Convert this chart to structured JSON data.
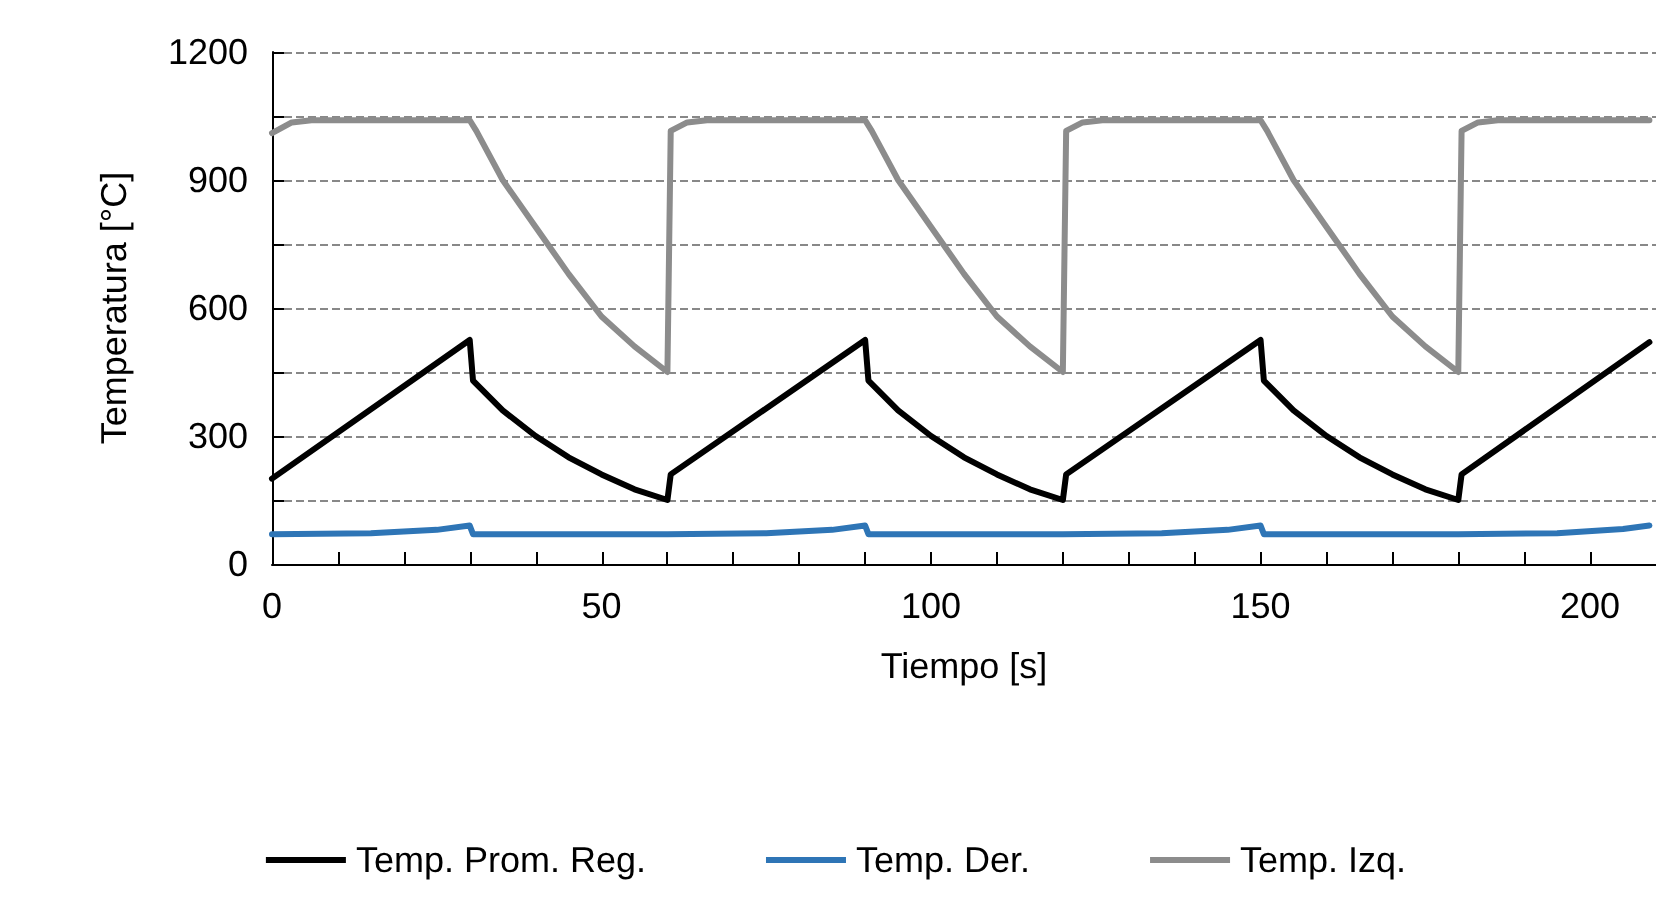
{
  "chart_data": {
    "type": "line",
    "xlabel": "Tiempo [s]",
    "ylabel": "Temperatura [°C]",
    "xlim": [
      0,
      210
    ],
    "ylim": [
      0,
      1200
    ],
    "xticks": [
      0,
      {
        "value": 10,
        "label": null
      },
      {
        "value": 20,
        "label": null
      },
      {
        "value": 30,
        "label": null
      },
      {
        "value": 40,
        "label": null
      },
      50,
      {
        "value": 60,
        "label": null
      },
      {
        "value": 70,
        "label": null
      },
      {
        "value": 80,
        "label": null
      },
      {
        "value": 90,
        "label": null
      },
      100,
      {
        "value": 110,
        "label": null
      },
      {
        "value": 120,
        "label": null
      },
      {
        "value": 130,
        "label": null
      },
      {
        "value": 140,
        "label": null
      },
      150,
      {
        "value": 160,
        "label": null
      },
      {
        "value": 170,
        "label": null
      },
      {
        "value": 180,
        "label": null
      },
      {
        "value": 190,
        "label": null
      },
      200
    ],
    "yticks": [
      0,
      {
        "value": 150,
        "label": null
      },
      300,
      {
        "value": 450,
        "label": null
      },
      600,
      {
        "value": 750,
        "label": null
      },
      900,
      {
        "value": 1050,
        "label": null
      },
      1200
    ],
    "grid": "y",
    "legend": "bottom",
    "marker": "none",
    "line_style": "solid",
    "series": [
      {
        "name": "Temp. Prom. Reg.",
        "color": "#000000",
        "x": [
          0,
          30,
          30.5,
          35,
          40,
          45,
          50,
          55,
          60,
          60.5,
          90,
          90.5,
          95,
          100,
          105,
          110,
          115,
          120,
          120.5,
          150,
          150.5,
          155,
          160,
          165,
          170,
          175,
          180,
          180.5,
          209
        ],
        "values": [
          200,
          525,
          430,
          360,
          300,
          250,
          210,
          175,
          150,
          210,
          525,
          430,
          360,
          300,
          250,
          210,
          175,
          150,
          210,
          525,
          430,
          360,
          300,
          250,
          210,
          175,
          150,
          210,
          520
        ]
      },
      {
        "name": "Temp. Der.",
        "color": "#2e75b6",
        "x": [
          0,
          15,
          25,
          30,
          30.5,
          60,
          75,
          85,
          90,
          90.5,
          120,
          135,
          145,
          150,
          150.5,
          180,
          195,
          205,
          209
        ],
        "values": [
          70,
          72,
          80,
          90,
          70,
          70,
          72,
          80,
          90,
          70,
          70,
          72,
          80,
          90,
          70,
          70,
          72,
          82,
          90
        ]
      },
      {
        "name": "Temp. Izq.",
        "color": "#8c8c8c",
        "x": [
          0,
          3,
          6,
          30,
          31,
          35,
          40,
          45,
          50,
          55,
          60,
          60.5,
          63,
          66,
          90,
          91,
          95,
          100,
          105,
          110,
          115,
          120,
          120.5,
          123,
          126,
          150,
          151,
          155,
          160,
          165,
          170,
          175,
          180,
          180.5,
          183,
          186,
          209
        ],
        "values": [
          1010,
          1035,
          1040,
          1040,
          1015,
          900,
          790,
          680,
          580,
          510,
          450,
          1015,
          1035,
          1040,
          1040,
          1015,
          900,
          790,
          680,
          580,
          510,
          450,
          1015,
          1035,
          1040,
          1040,
          1015,
          900,
          790,
          680,
          580,
          510,
          450,
          1015,
          1035,
          1040,
          1040
        ]
      }
    ]
  }
}
